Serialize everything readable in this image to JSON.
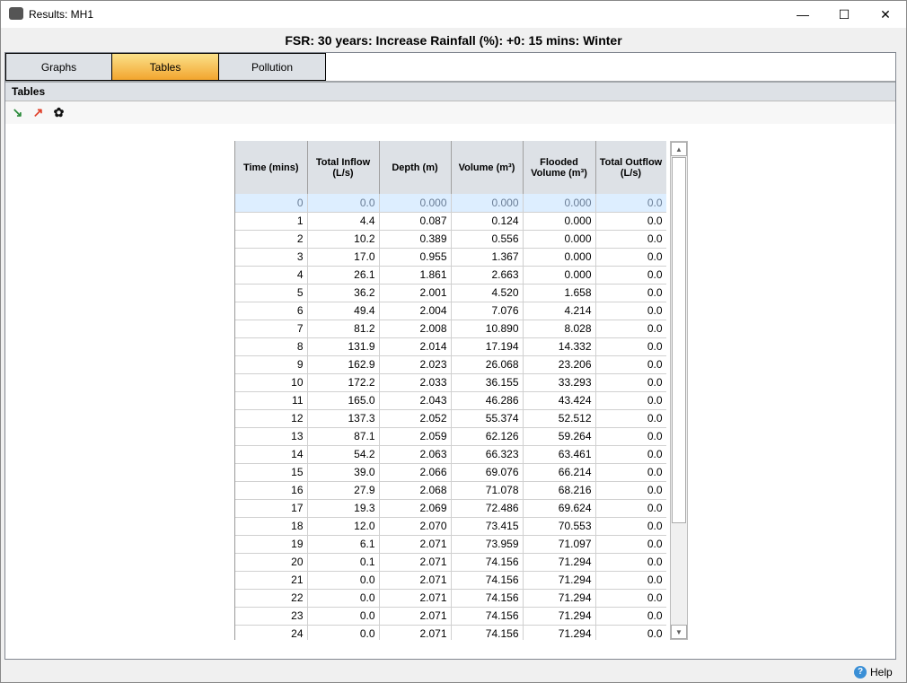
{
  "window": {
    "title": "Results: MH1",
    "minimize": "—",
    "maximize": "☐",
    "close": "✕"
  },
  "heading": "FSR: 30 years: Increase Rainfall (%): +0: 15 mins: Winter",
  "tabs": [
    {
      "label": "Graphs"
    },
    {
      "label": "Tables",
      "active": true
    },
    {
      "label": "Pollution"
    }
  ],
  "section_title": "Tables",
  "toolbar": [
    {
      "icon": "inflow-arrow-icon",
      "glyph": "↘"
    },
    {
      "icon": "outflow-arrow-icon",
      "glyph": "↗"
    },
    {
      "icon": "pollution-icon",
      "glyph": "✿"
    }
  ],
  "table": {
    "columns": [
      "Time (mins)",
      "Total Inflow (L/s)",
      "Depth (m)",
      "Volume (m³)",
      "Flooded Volume (m³)",
      "Total Outflow (L/s)"
    ],
    "rows": [
      [
        "0",
        "0.0",
        "0.000",
        "0.000",
        "0.000",
        "0.0"
      ],
      [
        "1",
        "4.4",
        "0.087",
        "0.124",
        "0.000",
        "0.0"
      ],
      [
        "2",
        "10.2",
        "0.389",
        "0.556",
        "0.000",
        "0.0"
      ],
      [
        "3",
        "17.0",
        "0.955",
        "1.367",
        "0.000",
        "0.0"
      ],
      [
        "4",
        "26.1",
        "1.861",
        "2.663",
        "0.000",
        "0.0"
      ],
      [
        "5",
        "36.2",
        "2.001",
        "4.520",
        "1.658",
        "0.0"
      ],
      [
        "6",
        "49.4",
        "2.004",
        "7.076",
        "4.214",
        "0.0"
      ],
      [
        "7",
        "81.2",
        "2.008",
        "10.890",
        "8.028",
        "0.0"
      ],
      [
        "8",
        "131.9",
        "2.014",
        "17.194",
        "14.332",
        "0.0"
      ],
      [
        "9",
        "162.9",
        "2.023",
        "26.068",
        "23.206",
        "0.0"
      ],
      [
        "10",
        "172.2",
        "2.033",
        "36.155",
        "33.293",
        "0.0"
      ],
      [
        "11",
        "165.0",
        "2.043",
        "46.286",
        "43.424",
        "0.0"
      ],
      [
        "12",
        "137.3",
        "2.052",
        "55.374",
        "52.512",
        "0.0"
      ],
      [
        "13",
        "87.1",
        "2.059",
        "62.126",
        "59.264",
        "0.0"
      ],
      [
        "14",
        "54.2",
        "2.063",
        "66.323",
        "63.461",
        "0.0"
      ],
      [
        "15",
        "39.0",
        "2.066",
        "69.076",
        "66.214",
        "0.0"
      ],
      [
        "16",
        "27.9",
        "2.068",
        "71.078",
        "68.216",
        "0.0"
      ],
      [
        "17",
        "19.3",
        "2.069",
        "72.486",
        "69.624",
        "0.0"
      ],
      [
        "18",
        "12.0",
        "2.070",
        "73.415",
        "70.553",
        "0.0"
      ],
      [
        "19",
        "6.1",
        "2.071",
        "73.959",
        "71.097",
        "0.0"
      ],
      [
        "20",
        "0.1",
        "2.071",
        "74.156",
        "71.294",
        "0.0"
      ],
      [
        "21",
        "0.0",
        "2.071",
        "74.156",
        "71.294",
        "0.0"
      ],
      [
        "22",
        "0.0",
        "2.071",
        "74.156",
        "71.294",
        "0.0"
      ],
      [
        "23",
        "0.0",
        "2.071",
        "74.156",
        "71.294",
        "0.0"
      ],
      [
        "24",
        "0.0",
        "2.071",
        "74.156",
        "71.294",
        "0.0"
      ]
    ],
    "selected_row": 0
  },
  "scroll": {
    "up": "▲",
    "down": "▼"
  },
  "help": {
    "label": "Help",
    "glyph": "?"
  }
}
